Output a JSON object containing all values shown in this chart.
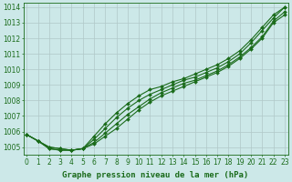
{
  "x_start": 0,
  "series": [
    [
      1005.8,
      1005.4,
      1005.0,
      1004.9,
      1004.8,
      1004.9,
      1005.2,
      1005.7,
      1006.2,
      1006.8,
      1007.4,
      1007.9,
      1008.3,
      1008.6,
      1008.9,
      1009.2,
      1009.5,
      1009.8,
      1010.2,
      1010.7,
      1011.3,
      1012.0,
      1013.0,
      1013.5
    ],
    [
      1005.8,
      1005.4,
      1005.0,
      1004.9,
      1004.8,
      1004.9,
      1005.3,
      1005.9,
      1006.5,
      1007.1,
      1007.6,
      1008.1,
      1008.5,
      1008.8,
      1009.1,
      1009.3,
      1009.6,
      1009.9,
      1010.3,
      1010.8,
      1011.4,
      1012.1,
      1013.1,
      1013.7
    ],
    [
      1005.8,
      1005.4,
      1004.9,
      1004.8,
      1004.8,
      1004.9,
      1005.5,
      1006.2,
      1006.9,
      1007.5,
      1008.0,
      1008.4,
      1008.7,
      1009.0,
      1009.3,
      1009.5,
      1009.8,
      1010.1,
      1010.5,
      1011.0,
      1011.7,
      1012.5,
      1013.3,
      1014.0
    ],
    [
      1005.8,
      1005.4,
      1004.9,
      1004.8,
      1004.8,
      1004.9,
      1005.7,
      1006.5,
      1007.2,
      1007.8,
      1008.3,
      1008.7,
      1008.9,
      1009.2,
      1009.4,
      1009.7,
      1010.0,
      1010.3,
      1010.7,
      1011.2,
      1011.9,
      1012.7,
      1013.5,
      1014.0
    ]
  ],
  "line_color": "#1a6b1a",
  "marker": "D",
  "marker_size": 2.0,
  "line_width": 0.8,
  "bg_color": "#cce8e8",
  "grid_color": "#b0c8c8",
  "xlabel": "Graphe pression niveau de la mer (hPa)",
  "yticks": [
    1005,
    1006,
    1007,
    1008,
    1009,
    1010,
    1011,
    1012,
    1013,
    1014
  ],
  "xlim": [
    -0.3,
    23.3
  ],
  "ylim": [
    1004.5,
    1014.3
  ],
  "xlabel_fontsize": 6.5,
  "tick_fontsize": 5.5
}
